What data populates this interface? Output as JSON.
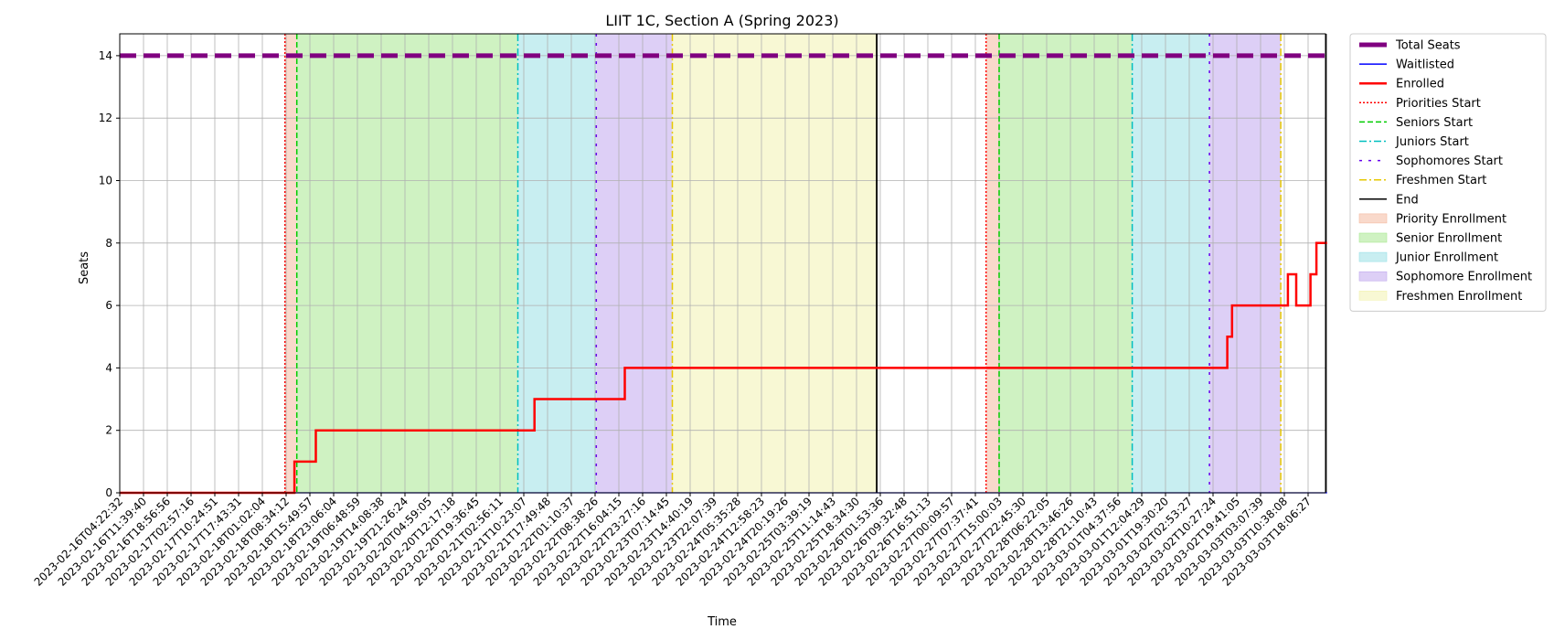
{
  "chart_data": {
    "type": "line",
    "title": "LIIT 1C, Section A (Spring 2023)",
    "xlabel": "Time",
    "ylabel": "Seats",
    "ylim": [
      0,
      14.7
    ],
    "yticks": [
      0,
      2,
      4,
      6,
      8,
      10,
      12,
      14
    ],
    "grid": true,
    "legend_position": "outside-right",
    "x_categories": [
      "2023-02-16T04:22:32",
      "2023-02-16T11:39:40",
      "2023-02-16T18:56:56",
      "2023-02-17T02:57:16",
      "2023-02-17T10:24:51",
      "2023-02-17T17:43:31",
      "2023-02-18T01:02:04",
      "2023-02-18T08:34:12",
      "2023-02-18T15:49:57",
      "2023-02-18T23:06:04",
      "2023-02-19T06:48:59",
      "2023-02-19T14:08:38",
      "2023-02-19T21:26:24",
      "2023-02-20T04:59:05",
      "2023-02-20T12:17:18",
      "2023-02-20T19:36:45",
      "2023-02-21T02:56:11",
      "2023-02-21T10:23:07",
      "2023-02-21T17:49:48",
      "2023-02-22T01:10:37",
      "2023-02-22T08:38:26",
      "2023-02-22T16:04:15",
      "2023-02-22T23:27:16",
      "2023-02-23T07:14:45",
      "2023-02-23T14:40:19",
      "2023-02-23T22:07:39",
      "2023-02-24T05:35:28",
      "2023-02-24T12:58:23",
      "2023-02-24T20:19:26",
      "2023-02-25T03:39:19",
      "2023-02-25T11:14:43",
      "2023-02-25T18:34:30",
      "2023-02-26T01:53:36",
      "2023-02-26T09:32:48",
      "2023-02-26T16:51:13",
      "2023-02-27T00:09:57",
      "2023-02-27T07:37:41",
      "2023-02-27T15:00:03",
      "2023-02-27T22:45:30",
      "2023-02-28T06:22:05",
      "2023-02-28T13:46:26",
      "2023-02-28T21:10:43",
      "2023-03-01T04:37:56",
      "2023-03-01T12:04:29",
      "2023-03-01T19:30:20",
      "2023-03-02T02:53:27",
      "2023-03-02T10:27:24",
      "2023-03-02T19:41:05",
      "2023-03-03T03:07:39",
      "2023-03-03T10:38:08",
      "2023-03-03T18:06:27"
    ],
    "series": [
      {
        "name": "Total Seats",
        "style": "dashed",
        "color": "#800080",
        "x": [
          0,
          50.8
        ],
        "y": [
          14,
          14
        ]
      },
      {
        "name": "Waitlisted",
        "style": "solid",
        "color": "#0000ff",
        "x": [
          0,
          50.8
        ],
        "y": [
          0,
          0
        ]
      },
      {
        "name": "Enrolled",
        "style": "step",
        "color": "#ff0000",
        "x": [
          0,
          7.35,
          7.35,
          8.25,
          8.25,
          17.45,
          17.45,
          21.25,
          21.25,
          46.6,
          46.6,
          46.8,
          46.8,
          49.15,
          49.15,
          49.5,
          49.5,
          50.1,
          50.1,
          50.35,
          50.35,
          50.8
        ],
        "y": [
          0,
          0,
          1,
          1,
          2,
          2,
          3,
          3,
          4,
          4,
          5,
          5,
          6,
          6,
          7,
          7,
          6,
          6,
          7,
          7,
          8,
          8
        ]
      }
    ],
    "vertical_lines": [
      {
        "name": "Priorities Start",
        "color": "#ff0000",
        "style": "dotted",
        "x": [
          6.95,
          36.45
        ]
      },
      {
        "name": "Seniors Start",
        "color": "#00cc00",
        "style": "dashed",
        "x": [
          7.45,
          37.0
        ]
      },
      {
        "name": "Juniors Start",
        "color": "#00bfbf",
        "style": "dashdot",
        "x": [
          16.75,
          42.6
        ]
      },
      {
        "name": "Sophomores Start",
        "color": "#6600ee",
        "style": "sparse-dash",
        "x": [
          20.05,
          45.85
        ]
      },
      {
        "name": "Freshmen Start",
        "color": "#e6c800",
        "style": "dashdot",
        "x": [
          23.25,
          48.85
        ]
      },
      {
        "name": "End",
        "color": "#000000",
        "style": "solid",
        "x": [
          31.85,
          50.75
        ]
      }
    ],
    "spans": [
      {
        "name": "Priority Enrollment",
        "color": "#f4b9a0",
        "ranges": [
          [
            6.95,
            7.45
          ],
          [
            36.45,
            37.0
          ]
        ]
      },
      {
        "name": "Senior Enrollment",
        "color": "#a8e890",
        "ranges": [
          [
            7.45,
            16.75
          ],
          [
            37.0,
            42.6
          ]
        ]
      },
      {
        "name": "Junior Enrollment",
        "color": "#9ae0e6",
        "ranges": [
          [
            16.75,
            20.05
          ],
          [
            42.6,
            45.85
          ]
        ]
      },
      {
        "name": "Sophomore Enrollment",
        "color": "#c1a8ee",
        "ranges": [
          [
            20.05,
            23.25
          ],
          [
            45.85,
            48.85
          ]
        ]
      },
      {
        "name": "Freshmen Enrollment",
        "color": "#f2f2b0",
        "ranges": [
          [
            23.25,
            31.85
          ]
        ]
      }
    ],
    "legend": [
      "Total Seats",
      "Waitlisted",
      "Enrolled",
      "Priorities Start",
      "Seniors Start",
      "Juniors Start",
      "Sophomores Start",
      "Freshmen Start",
      "End",
      "Priority Enrollment",
      "Senior Enrollment",
      "Junior Enrollment",
      "Sophomore Enrollment",
      "Freshmen Enrollment"
    ]
  }
}
